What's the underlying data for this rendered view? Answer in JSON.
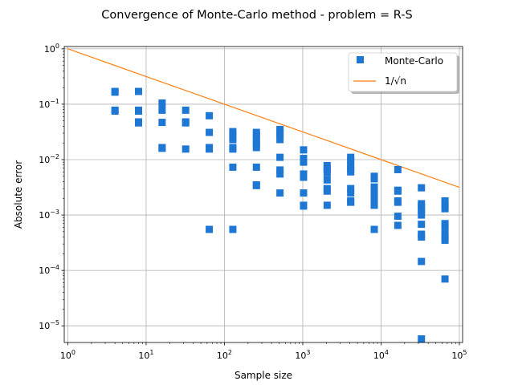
{
  "chart_data": {
    "type": "scatter",
    "title": "Convergence of Monte-Carlo method - problem = R-S",
    "xlabel": "Sample size",
    "ylabel": "Absolute error",
    "xscale": "log",
    "yscale": "log",
    "xlim": [
      0.9,
      110000
    ],
    "ylim": [
      5e-06,
      1.1
    ],
    "grid": true,
    "legend_position": "top-right",
    "x_ticks": [
      {
        "base": "10",
        "exp": "0"
      },
      {
        "base": "10",
        "exp": "1"
      },
      {
        "base": "10",
        "exp": "2"
      },
      {
        "base": "10",
        "exp": "3"
      },
      {
        "base": "10",
        "exp": "4"
      },
      {
        "base": "10",
        "exp": "5"
      }
    ],
    "y_ticks": [
      {
        "base": "10",
        "exp": "−5"
      },
      {
        "base": "10",
        "exp": "−4"
      },
      {
        "base": "10",
        "exp": "−3"
      },
      {
        "base": "10",
        "exp": "−2"
      },
      {
        "base": "10",
        "exp": "−1"
      },
      {
        "base": "10",
        "exp": "0"
      }
    ],
    "series": [
      {
        "name": "Monte-Carlo",
        "kind": "scatter",
        "marker": "square",
        "color": "#1f77d4",
        "points": [
          {
            "x": 4,
            "y": 0.17
          },
          {
            "x": 4,
            "y": 0.165
          },
          {
            "x": 4,
            "y": 0.078
          },
          {
            "x": 4,
            "y": 0.075
          },
          {
            "x": 8,
            "y": 0.17
          },
          {
            "x": 8,
            "y": 0.078
          },
          {
            "x": 8,
            "y": 0.075
          },
          {
            "x": 8,
            "y": 0.048
          },
          {
            "x": 8,
            "y": 0.046
          },
          {
            "x": 16,
            "y": 0.105
          },
          {
            "x": 16,
            "y": 0.078
          },
          {
            "x": 16,
            "y": 0.047
          },
          {
            "x": 16,
            "y": 0.0165
          },
          {
            "x": 16,
            "y": 0.016
          },
          {
            "x": 32,
            "y": 0.078
          },
          {
            "x": 32,
            "y": 0.048
          },
          {
            "x": 32,
            "y": 0.046
          },
          {
            "x": 32,
            "y": 0.0155
          },
          {
            "x": 64,
            "y": 0.062
          },
          {
            "x": 64,
            "y": 0.031
          },
          {
            "x": 64,
            "y": 0.0165
          },
          {
            "x": 64,
            "y": 0.0155
          },
          {
            "x": 64,
            "y": 0.00055
          },
          {
            "x": 128,
            "y": 0.032
          },
          {
            "x": 128,
            "y": 0.027
          },
          {
            "x": 128,
            "y": 0.023
          },
          {
            "x": 128,
            "y": 0.0165
          },
          {
            "x": 128,
            "y": 0.0155
          },
          {
            "x": 128,
            "y": 0.0073
          },
          {
            "x": 128,
            "y": 0.00055
          },
          {
            "x": 256,
            "y": 0.031
          },
          {
            "x": 256,
            "y": 0.027
          },
          {
            "x": 256,
            "y": 0.023
          },
          {
            "x": 256,
            "y": 0.019
          },
          {
            "x": 256,
            "y": 0.0165
          },
          {
            "x": 256,
            "y": 0.0073
          },
          {
            "x": 256,
            "y": 0.0035
          },
          {
            "x": 256,
            "y": 0.0034
          },
          {
            "x": 512,
            "y": 0.035
          },
          {
            "x": 512,
            "y": 0.031
          },
          {
            "x": 512,
            "y": 0.027
          },
          {
            "x": 512,
            "y": 0.023
          },
          {
            "x": 512,
            "y": 0.011
          },
          {
            "x": 512,
            "y": 0.0065
          },
          {
            "x": 512,
            "y": 0.0055
          },
          {
            "x": 512,
            "y": 0.0025
          },
          {
            "x": 1024,
            "y": 0.015
          },
          {
            "x": 1024,
            "y": 0.0105
          },
          {
            "x": 1024,
            "y": 0.009
          },
          {
            "x": 1024,
            "y": 0.0055
          },
          {
            "x": 1024,
            "y": 0.0048
          },
          {
            "x": 1024,
            "y": 0.0025
          },
          {
            "x": 1024,
            "y": 0.0015
          },
          {
            "x": 1024,
            "y": 0.00145
          },
          {
            "x": 2048,
            "y": 0.0078
          },
          {
            "x": 2048,
            "y": 0.0068
          },
          {
            "x": 2048,
            "y": 0.0058
          },
          {
            "x": 2048,
            "y": 0.0043
          },
          {
            "x": 2048,
            "y": 0.003
          },
          {
            "x": 2048,
            "y": 0.0027
          },
          {
            "x": 2048,
            "y": 0.0015
          },
          {
            "x": 4096,
            "y": 0.011
          },
          {
            "x": 4096,
            "y": 0.0095
          },
          {
            "x": 4096,
            "y": 0.0078
          },
          {
            "x": 4096,
            "y": 0.0068
          },
          {
            "x": 4096,
            "y": 0.006
          },
          {
            "x": 4096,
            "y": 0.003
          },
          {
            "x": 4096,
            "y": 0.0025
          },
          {
            "x": 4096,
            "y": 0.0018
          },
          {
            "x": 4096,
            "y": 0.0017
          },
          {
            "x": 8192,
            "y": 0.005
          },
          {
            "x": 8192,
            "y": 0.0045
          },
          {
            "x": 8192,
            "y": 0.0032
          },
          {
            "x": 8192,
            "y": 0.0027
          },
          {
            "x": 8192,
            "y": 0.0023
          },
          {
            "x": 8192,
            "y": 0.002
          },
          {
            "x": 8192,
            "y": 0.0017
          },
          {
            "x": 8192,
            "y": 0.0015
          },
          {
            "x": 8192,
            "y": 0.00055
          },
          {
            "x": 16384,
            "y": 0.0066
          },
          {
            "x": 16384,
            "y": 0.0028
          },
          {
            "x": 16384,
            "y": 0.0027
          },
          {
            "x": 16384,
            "y": 0.0018
          },
          {
            "x": 16384,
            "y": 0.0017
          },
          {
            "x": 16384,
            "y": 0.00095
          },
          {
            "x": 16384,
            "y": 0.00065
          },
          {
            "x": 32768,
            "y": 0.0031
          },
          {
            "x": 32768,
            "y": 0.0016
          },
          {
            "x": 32768,
            "y": 0.0014
          },
          {
            "x": 32768,
            "y": 0.0012
          },
          {
            "x": 32768,
            "y": 0.001
          },
          {
            "x": 32768,
            "y": 0.00068
          },
          {
            "x": 32768,
            "y": 0.00045
          },
          {
            "x": 32768,
            "y": 0.0004
          },
          {
            "x": 32768,
            "y": 0.000145
          },
          {
            "x": 32768,
            "y": 5.8e-06
          },
          {
            "x": 65536,
            "y": 0.0018
          },
          {
            "x": 65536,
            "y": 0.0016
          },
          {
            "x": 65536,
            "y": 0.0014
          },
          {
            "x": 65536,
            "y": 0.0013
          },
          {
            "x": 65536,
            "y": 0.0007
          },
          {
            "x": 65536,
            "y": 0.0006
          },
          {
            "x": 65536,
            "y": 0.00045
          },
          {
            "x": 65536,
            "y": 0.0004
          },
          {
            "x": 65536,
            "y": 0.00035
          },
          {
            "x": 65536,
            "y": 7e-05
          }
        ]
      },
      {
        "name": "1/√n",
        "kind": "line",
        "color": "#ff7f0e",
        "points": [
          {
            "x": 1,
            "y": 1
          },
          {
            "x": 10,
            "y": 0.316
          },
          {
            "x": 100,
            "y": 0.1
          },
          {
            "x": 1000,
            "y": 0.0316
          },
          {
            "x": 10000,
            "y": 0.01
          },
          {
            "x": 100000,
            "y": 0.00316
          }
        ]
      }
    ]
  }
}
